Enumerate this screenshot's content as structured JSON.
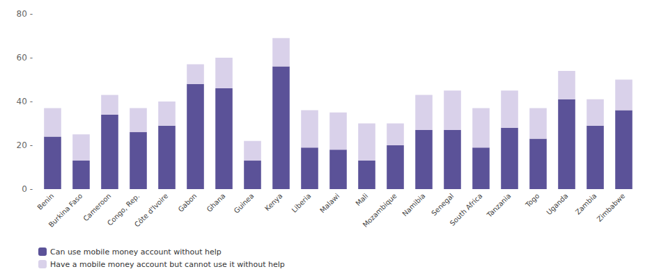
{
  "chart_data": {
    "type": "bar",
    "stacked": true,
    "categories": [
      "Benin",
      "Burkina Faso",
      "Cameroon",
      "Congo, Rep.",
      "Côte d'Ivoire",
      "Gabon",
      "Ghana",
      "Guinea",
      "Kenya",
      "Liberia",
      "Malawi",
      "Mali",
      "Mozambique",
      "Namibia",
      "Senegal",
      "South Africa",
      "Tanzania",
      "Togo",
      "Uganda",
      "Zambia",
      "Zimbabwe"
    ],
    "series": [
      {
        "name": "Can use mobile money account without help",
        "color": "#5b5298",
        "values": [
          24,
          13,
          34,
          26,
          29,
          48,
          46,
          13,
          56,
          19,
          18,
          13,
          20,
          27,
          27,
          19,
          28,
          23,
          41,
          29,
          36
        ]
      },
      {
        "name": "Have a mobile money account but cannot use it without help",
        "color": "#d9d1ea",
        "values": [
          13,
          12,
          9,
          11,
          11,
          9,
          14,
          9,
          13,
          17,
          17,
          17,
          10,
          16,
          18,
          18,
          17,
          14,
          13,
          12,
          14
        ]
      }
    ],
    "ylim": [
      0,
      80
    ],
    "yticks": [
      {
        "value": 0,
        "label": "0 -"
      },
      {
        "value": 20,
        "label": "20 -"
      },
      {
        "value": 40,
        "label": "40 -"
      },
      {
        "value": 60,
        "label": "60 -"
      },
      {
        "value": 80,
        "label": "80 -"
      }
    ],
    "grid": false,
    "legend": "lower left"
  }
}
